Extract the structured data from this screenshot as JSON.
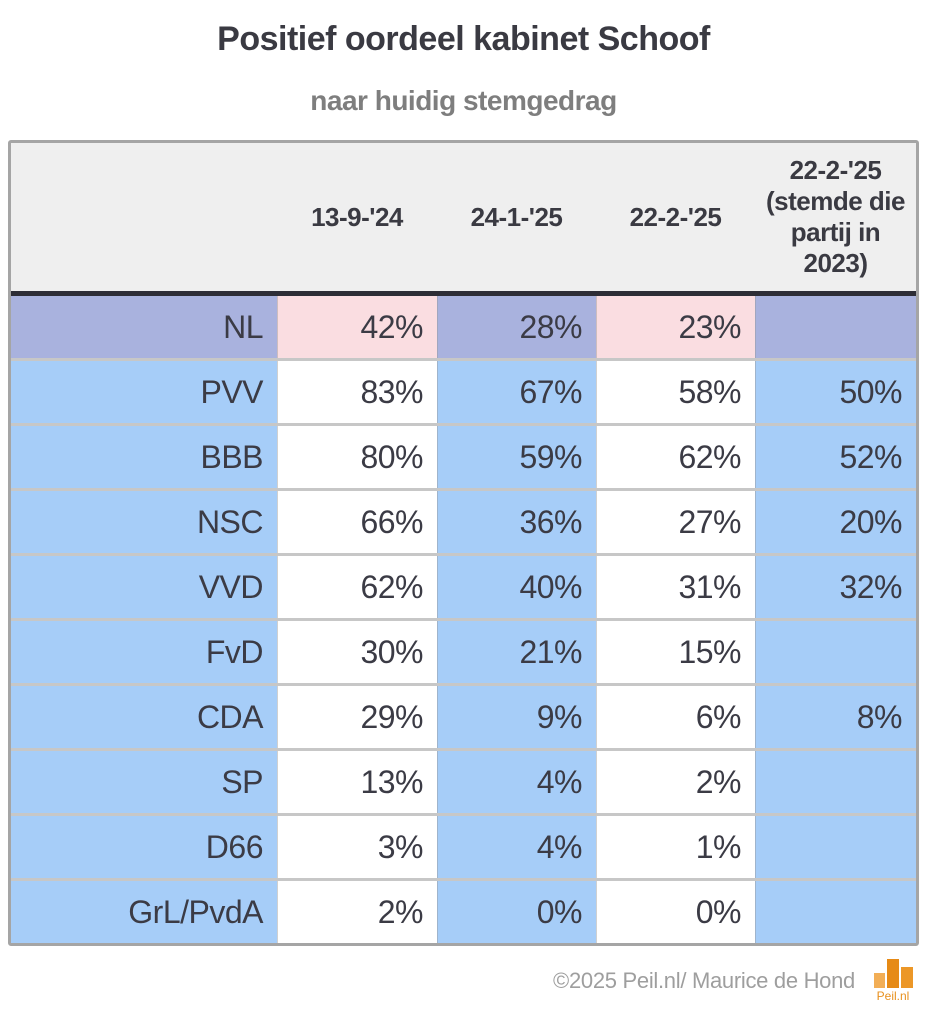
{
  "title": "Positief oordeel kabinet Schoof",
  "subtitle": "naar huidig stemgedrag",
  "chart_data": {
    "type": "table",
    "title": "Positief oordeel kabinet Schoof",
    "subtitle": "naar huidig stemgedrag",
    "columns": [
      "",
      "13-9-'24",
      "24-1-'25",
      "22-2-'25",
      "22-2-'25 (stemde die partij in 2023)"
    ],
    "rows": [
      {
        "party": "NL",
        "values": [
          "42%",
          "28%",
          "23%",
          ""
        ]
      },
      {
        "party": "PVV",
        "values": [
          "83%",
          "67%",
          "58%",
          "50%"
        ]
      },
      {
        "party": "BBB",
        "values": [
          "80%",
          "59%",
          "62%",
          "52%"
        ]
      },
      {
        "party": "NSC",
        "values": [
          "66%",
          "36%",
          "27%",
          "20%"
        ]
      },
      {
        "party": "VVD",
        "values": [
          "62%",
          "40%",
          "31%",
          "32%"
        ]
      },
      {
        "party": "FvD",
        "values": [
          "30%",
          "21%",
          "15%",
          ""
        ]
      },
      {
        "party": "CDA",
        "values": [
          "29%",
          "9%",
          "6%",
          "8%"
        ]
      },
      {
        "party": "SP",
        "values": [
          "13%",
          "4%",
          "2%",
          ""
        ]
      },
      {
        "party": "D66",
        "values": [
          "3%",
          "4%",
          "1%",
          ""
        ]
      },
      {
        "party": "GrL/PvdA",
        "values": [
          "2%",
          "0%",
          "0%",
          ""
        ]
      }
    ],
    "row_highlight_note": "NL row uses purple/pink cells; party rows alternate blue/white by column"
  },
  "colors": {
    "party_row_blue": "#a6cdf8",
    "nl_row_purple": "#a9b2de",
    "nl_row_pink": "#fadde1",
    "header_bg": "#efefef",
    "header_divider": "#2d2d36",
    "logo_orange": "#e8901d"
  },
  "footer": {
    "copyright": "©2025 Peil.nl/ Maurice de Hond",
    "logo_text": "Peil.nl"
  }
}
